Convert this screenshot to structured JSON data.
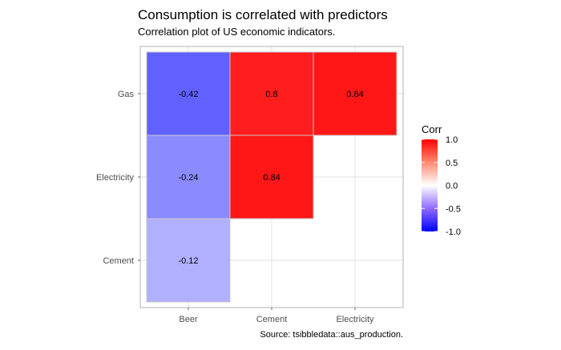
{
  "chart_data": {
    "type": "heatmap",
    "title": "Consumption is correlated with predictors",
    "subtitle": "Correlation plot of US economic indicators.",
    "caption": "Source: tsibbledata::aus_production.",
    "xlabel": "",
    "ylabel": "",
    "x_categories": [
      "Beer",
      "Cement",
      "Electricity"
    ],
    "y_categories": [
      "Gas",
      "Electricity",
      "Cement"
    ],
    "cells": [
      {
        "x": "Beer",
        "y": "Gas",
        "value": -0.42,
        "label": "-0.42"
      },
      {
        "x": "Cement",
        "y": "Gas",
        "value": 0.8,
        "label": "0.8"
      },
      {
        "x": "Electricity",
        "y": "Gas",
        "value": 0.84,
        "label": "0.84"
      },
      {
        "x": "Beer",
        "y": "Electricity",
        "value": -0.24,
        "label": "-0.24"
      },
      {
        "x": "Cement",
        "y": "Electricity",
        "value": 0.84,
        "label": "0.84"
      },
      {
        "x": "Beer",
        "y": "Cement",
        "value": -0.12,
        "label": "-0.12"
      }
    ],
    "legend": {
      "title": "Corr",
      "position": "right",
      "range": [
        -1,
        1
      ],
      "ticks": [
        1.0,
        0.5,
        0.0,
        -0.5,
        -1.0
      ],
      "tick_labels": [
        "1.0",
        "0.5",
        "0.0",
        "-0.5",
        "-1.0"
      ],
      "low_color": "#0000ff",
      "mid_color": "#ffffff",
      "high_color": "#ff0000"
    },
    "grid": true
  }
}
